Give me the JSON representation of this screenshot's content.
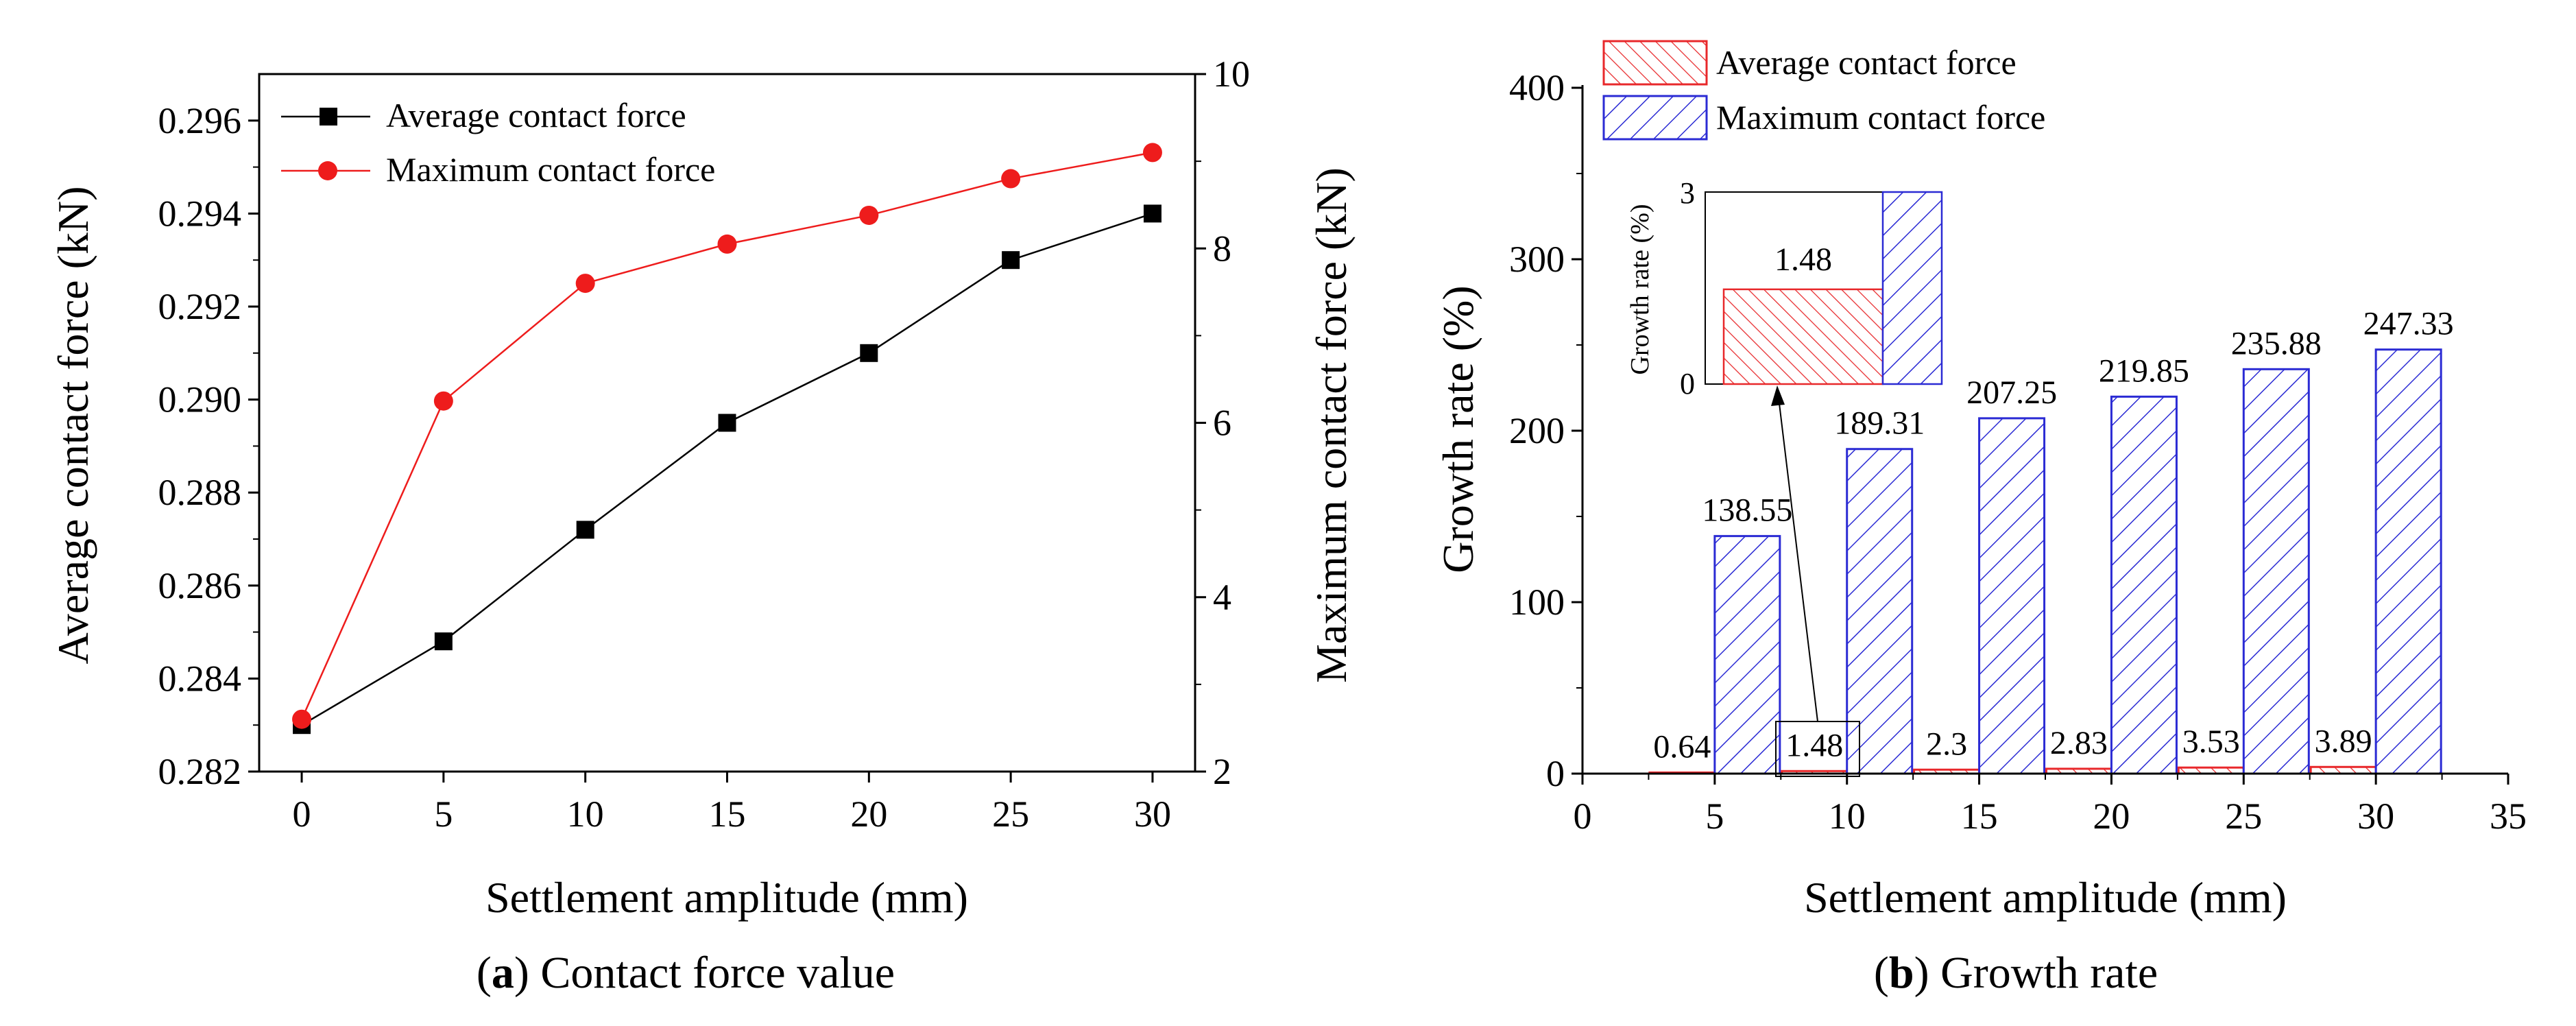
{
  "colors": {
    "average": "#e8282b",
    "maximum": "#2b2bd4",
    "black": "#000000",
    "red": "#ee1c1c"
  },
  "chart_data": [
    {
      "type": "line",
      "caption_label": "a",
      "caption_text": "Contact force value",
      "xlabel": "Settlement amplitude (mm)",
      "ylabel_left": "Average contact force (kN)",
      "ylabel_right": "Maximum contact force (kN)",
      "x": [
        0,
        5,
        10,
        15,
        20,
        25,
        30
      ],
      "xticks": [
        "0",
        "5",
        "10",
        "15",
        "20",
        "25",
        "30"
      ],
      "xlim": [
        -1.5,
        31.5
      ],
      "ylim_left": [
        0.282,
        0.297
      ],
      "ylim_right": [
        2,
        10
      ],
      "yticks_left": [
        "0.282",
        "0.284",
        "0.286",
        "0.288",
        "0.290",
        "0.292",
        "0.294",
        "0.296"
      ],
      "yticks_right": [
        "2",
        "4",
        "6",
        "8",
        "10"
      ],
      "legend_position": "top-left",
      "series": [
        {
          "name": "Average contact force",
          "axis": "left",
          "marker": "square",
          "values": [
            0.283,
            0.2848,
            0.2872,
            0.2895,
            0.291,
            0.293,
            0.294
          ]
        },
        {
          "name": "Maximum contact force",
          "axis": "right",
          "marker": "circle",
          "values": [
            2.6,
            6.25,
            7.6,
            8.05,
            8.38,
            8.8,
            9.1
          ]
        }
      ]
    },
    {
      "type": "bar",
      "caption_label": "b",
      "caption_text": "Growth rate",
      "xlabel": "Settlement amplitude (mm)",
      "ylabel": "Growth rate (%)",
      "x": [
        5,
        10,
        15,
        20,
        25,
        30
      ],
      "xticks": [
        "0",
        "5",
        "10",
        "15",
        "20",
        "25",
        "30",
        "35"
      ],
      "xlim": [
        0,
        35
      ],
      "ylim": [
        0,
        400
      ],
      "yticks": [
        "0",
        "100",
        "200",
        "300",
        "400"
      ],
      "legend_position": "top-left",
      "series": [
        {
          "name": "Average contact force",
          "values": [
            0.64,
            1.48,
            2.3,
            2.83,
            3.53,
            3.89
          ],
          "labels": [
            "0.64",
            "1.48",
            "2.3",
            "2.83",
            "3.53",
            "3.89"
          ]
        },
        {
          "name": "Maximum contact force",
          "values": [
            138.55,
            189.31,
            207.25,
            219.85,
            235.88,
            247.33
          ],
          "labels": [
            "138.55",
            "189.31",
            "207.25",
            "219.85",
            "235.88",
            "247.33"
          ]
        }
      ],
      "inset": {
        "ylabel": "Growth rate (%)",
        "ylim": [
          0,
          3
        ],
        "yticks": [
          "0",
          "3"
        ],
        "bar_value": 1.48,
        "bar_label": "1.48",
        "zoom_target_x": 10
      }
    }
  ]
}
